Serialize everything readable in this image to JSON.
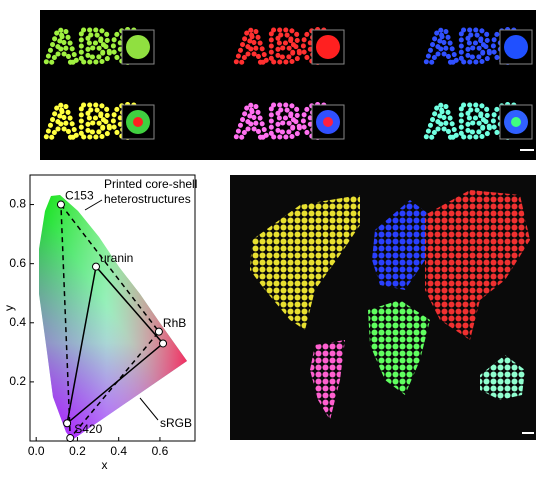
{
  "letters": [
    "ABC",
    "ABC",
    "ABC",
    "ABC",
    "ABC",
    "ABC"
  ],
  "chart_data": {
    "type": "scatter",
    "x": [
      0.12,
      0.29,
      0.595,
      0.615,
      0.15,
      0.165
    ],
    "y": [
      0.8,
      0.59,
      0.37,
      0.33,
      0.06,
      0.01
    ],
    "labels": [
      "C153",
      "uranin",
      "RhB",
      null,
      null,
      "S420"
    ],
    "xlabel": "x",
    "ylabel": "y",
    "xlim": [
      -0.03,
      0.77
    ],
    "ylim": [
      0,
      0.9
    ],
    "xticks": [
      {
        "value": 0,
        "label": "0.0"
      },
      0.2,
      0.4,
      0.6
    ],
    "yticks": [
      0.2,
      0.4,
      0.6,
      0.8
    ],
    "annotations": [
      "Printed core-shell",
      "heterostructures",
      "sRGB"
    ],
    "color": "#ffffff"
  }
}
